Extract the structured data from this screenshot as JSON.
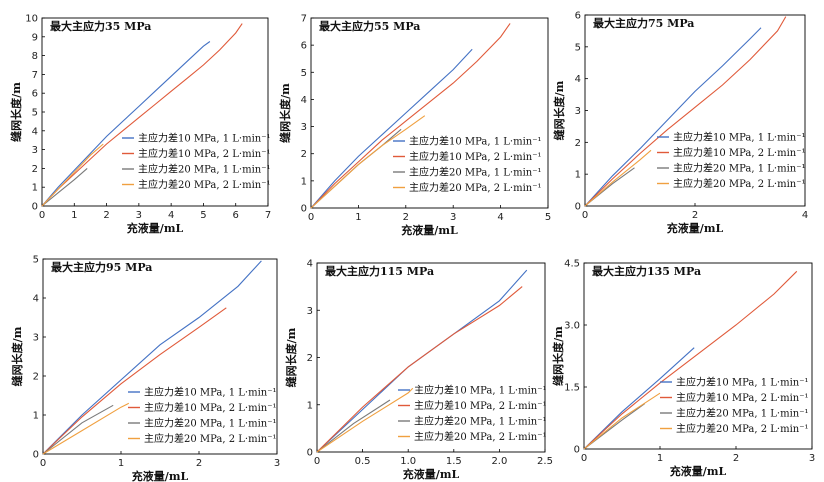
{
  "chart_data": [
    {
      "type": "line",
      "title": "最大主应力35 MPa",
      "xlabel": "充液量/mL",
      "ylabel": "缝网长度/m",
      "xlim": [
        0,
        7
      ],
      "ylim": [
        0,
        10
      ],
      "xticks": [
        0,
        1,
        2,
        3,
        4,
        5,
        6,
        7
      ],
      "yticks": [
        0,
        1,
        2,
        3,
        4,
        5,
        6,
        7,
        8,
        9,
        10
      ],
      "legend_position": "bottom-left",
      "series": [
        {
          "name": "主应力差10 MPa, 1 L·min⁻¹",
          "color": "#4472c4",
          "x": [
            0,
            0.5,
            1,
            1.5,
            2,
            2.5,
            3,
            3.5,
            4,
            4.5,
            5,
            5.2
          ],
          "y": [
            0,
            1.0,
            1.9,
            2.8,
            3.7,
            4.5,
            5.3,
            6.1,
            6.9,
            7.7,
            8.5,
            8.75
          ]
        },
        {
          "name": "主应力差10 MPa, 2 L·min⁻¹",
          "color": "#e05a3a",
          "x": [
            0,
            0.5,
            1,
            1.5,
            2,
            2.5,
            3,
            3.5,
            4,
            4.5,
            5,
            5.5,
            6,
            6.2
          ],
          "y": [
            0,
            0.9,
            1.7,
            2.5,
            3.3,
            4.0,
            4.7,
            5.4,
            6.1,
            6.8,
            7.5,
            8.3,
            9.2,
            9.7
          ]
        },
        {
          "name": "主应力差20 MPa, 1 L·min⁻¹",
          "color": "#7a7a7a",
          "x": [
            0,
            0.5,
            1,
            1.4
          ],
          "y": [
            0,
            0.7,
            1.4,
            2.0
          ]
        },
        {
          "name": "主应力差20 MPa, 2 L·min⁻¹",
          "color": "#f0a040",
          "x": [
            0,
            0.5,
            1,
            1.5,
            1.9
          ],
          "y": [
            0,
            0.9,
            1.8,
            2.7,
            3.3
          ]
        }
      ]
    },
    {
      "type": "line",
      "title": "最大主应力55 MPa",
      "xlabel": "充液量/mL",
      "ylabel": "缝网长度/m",
      "xlim": [
        0,
        5
      ],
      "ylim": [
        0,
        7
      ],
      "xticks": [
        0,
        1,
        2,
        3,
        4,
        5
      ],
      "yticks": [
        0,
        1,
        2,
        3,
        4,
        5,
        6,
        7
      ],
      "legend_position": "bottom-right",
      "series": [
        {
          "name": "主应力差10 MPa, 1 L·min⁻¹",
          "color": "#4472c4",
          "x": [
            0,
            0.5,
            1,
            1.5,
            2,
            2.5,
            3,
            3.4
          ],
          "y": [
            0,
            1.0,
            1.9,
            2.7,
            3.5,
            4.3,
            5.1,
            5.85
          ]
        },
        {
          "name": "主应力差10 MPa, 2 L·min⁻¹",
          "color": "#e05a3a",
          "x": [
            0,
            0.5,
            1,
            1.5,
            2,
            2.5,
            3,
            3.5,
            4,
            4.2
          ],
          "y": [
            0,
            0.9,
            1.7,
            2.5,
            3.2,
            3.9,
            4.6,
            5.4,
            6.3,
            6.8
          ]
        },
        {
          "name": "主应力差20 MPa, 1 L·min⁻¹",
          "color": "#7a7a7a",
          "x": [
            0,
            0.5,
            1,
            1.5,
            1.9
          ],
          "y": [
            0,
            0.8,
            1.6,
            2.3,
            2.9
          ]
        },
        {
          "name": "主应力差20 MPa, 2 L·min⁻¹",
          "color": "#f0a040",
          "x": [
            0,
            0.5,
            1,
            1.5,
            2,
            2.4
          ],
          "y": [
            0,
            0.8,
            1.6,
            2.3,
            2.9,
            3.4
          ]
        }
      ]
    },
    {
      "type": "line",
      "title": "最大主应力75 MPa",
      "xlabel": "充液量/mL",
      "ylabel": "缝网长度/m",
      "xlim": [
        0,
        4
      ],
      "ylim": [
        0,
        6
      ],
      "xticks": [
        0,
        2,
        4
      ],
      "yticks": [
        0,
        1,
        2,
        3,
        4,
        5,
        6
      ],
      "legend_position": "bottom-right",
      "series": [
        {
          "name": "主应力差10 MPa, 1 L·min⁻¹",
          "color": "#4472c4",
          "x": [
            0,
            0.5,
            1,
            1.5,
            2,
            2.5,
            3,
            3.2
          ],
          "y": [
            0,
            0.95,
            1.8,
            2.7,
            3.6,
            4.4,
            5.25,
            5.6
          ]
        },
        {
          "name": "主应力差10 MPa, 2 L·min⁻¹",
          "color": "#e05a3a",
          "x": [
            0,
            0.5,
            1,
            1.5,
            2,
            2.5,
            3,
            3.5,
            3.65
          ],
          "y": [
            0,
            0.85,
            1.65,
            2.4,
            3.1,
            3.8,
            4.6,
            5.5,
            5.95
          ]
        },
        {
          "name": "主应力差20 MPa, 1 L·min⁻¹",
          "color": "#7a7a7a",
          "x": [
            0,
            0.5,
            0.9
          ],
          "y": [
            0,
            0.7,
            1.2
          ]
        },
        {
          "name": "主应力差20 MPa, 2 L·min⁻¹",
          "color": "#f0a040",
          "x": [
            0,
            0.5,
            1,
            1.2
          ],
          "y": [
            0,
            0.75,
            1.45,
            1.75
          ]
        }
      ]
    },
    {
      "type": "line",
      "title": "最大主应力95 MPa",
      "xlabel": "充液量/mL",
      "ylabel": "缝网长度/m",
      "xlim": [
        0,
        3
      ],
      "ylim": [
        0,
        5
      ],
      "xticks": [
        0,
        1,
        2,
        3
      ],
      "yticks": [
        0,
        1,
        2,
        3,
        4,
        5
      ],
      "legend_position": "bottom-right",
      "series": [
        {
          "name": "主应力差10 MPa, 1 L·min⁻¹",
          "color": "#4472c4",
          "x": [
            0,
            0.5,
            1,
            1.5,
            2,
            2.5,
            2.8
          ],
          "y": [
            0,
            1.0,
            1.9,
            2.8,
            3.5,
            4.3,
            4.95
          ]
        },
        {
          "name": "主应力差10 MPa, 2 L·min⁻¹",
          "color": "#e05a3a",
          "x": [
            0,
            0.5,
            1,
            1.5,
            2,
            2.35
          ],
          "y": [
            0,
            0.95,
            1.8,
            2.55,
            3.25,
            3.75
          ]
        },
        {
          "name": "主应力差20 MPa, 1 L·min⁻¹",
          "color": "#7a7a7a",
          "x": [
            0,
            0.5,
            0.9
          ],
          "y": [
            0,
            0.8,
            1.25
          ]
        },
        {
          "name": "主应力差20 MPa, 2 L·min⁻¹",
          "color": "#f0a040",
          "x": [
            0,
            0.5,
            1,
            1.1
          ],
          "y": [
            0,
            0.6,
            1.2,
            1.3
          ]
        }
      ]
    },
    {
      "type": "line",
      "title": "最大主应力115 MPa",
      "xlabel": "充液量/mL",
      "ylabel": "缝网长度/m",
      "xlim": [
        0,
        2.5
      ],
      "ylim": [
        0,
        4
      ],
      "xticks": [
        0,
        0.5,
        1.0,
        1.5,
        2.0,
        2.5
      ],
      "yticks": [
        0,
        1,
        2,
        3,
        4
      ],
      "legend_position": "bottom-right",
      "series": [
        {
          "name": "主应力差10 MPa, 1 L·min⁻¹",
          "color": "#4472c4",
          "x": [
            0,
            0.5,
            1,
            1.5,
            2,
            2.3
          ],
          "y": [
            0,
            0.9,
            1.8,
            2.5,
            3.2,
            3.85
          ]
        },
        {
          "name": "主应力差10 MPa, 2 L·min⁻¹",
          "color": "#e05a3a",
          "x": [
            0,
            0.5,
            1,
            1.5,
            2,
            2.25
          ],
          "y": [
            0,
            0.95,
            1.8,
            2.5,
            3.1,
            3.5
          ]
        },
        {
          "name": "主应力差20 MPa, 1 L·min⁻¹",
          "color": "#7a7a7a",
          "x": [
            0,
            0.4,
            0.8
          ],
          "y": [
            0,
            0.6,
            1.1
          ]
        },
        {
          "name": "主应力差20 MPa, 2 L·min⁻¹",
          "color": "#f0a040",
          "x": [
            0,
            0.5,
            1,
            1.05
          ],
          "y": [
            0,
            0.65,
            1.25,
            1.35
          ]
        }
      ]
    },
    {
      "type": "line",
      "title": "最大主应力135 MPa",
      "xlabel": "充液量/mL",
      "ylabel": "缝网长度/m",
      "xlim": [
        0,
        3
      ],
      "ylim": [
        0,
        4.5
      ],
      "xticks": [
        0,
        1,
        2,
        3
      ],
      "yticks": [
        0,
        1.5,
        3.0,
        4.5
      ],
      "legend_position": "bottom-right",
      "series": [
        {
          "name": "主应力差10 MPa, 1 L·min⁻¹",
          "color": "#4472c4",
          "x": [
            0,
            0.5,
            1,
            1.45
          ],
          "y": [
            0,
            0.9,
            1.7,
            2.45
          ]
        },
        {
          "name": "主应力差10 MPa, 2 L·min⁻¹",
          "color": "#e05a3a",
          "x": [
            0,
            0.5,
            1,
            1.5,
            2,
            2.5,
            2.8
          ],
          "y": [
            0,
            0.85,
            1.6,
            2.3,
            3.0,
            3.75,
            4.3
          ]
        },
        {
          "name": "主应力差20 MPa, 1 L·min⁻¹",
          "color": "#7a7a7a",
          "x": [
            0,
            0.5,
            0.8
          ],
          "y": [
            0,
            0.7,
            1.1
          ]
        },
        {
          "name": "主应力差20 MPa, 2 L·min⁻¹",
          "color": "#f0a040",
          "x": [
            0,
            0.5,
            1.0
          ],
          "y": [
            0,
            0.75,
            1.35
          ]
        }
      ]
    }
  ]
}
